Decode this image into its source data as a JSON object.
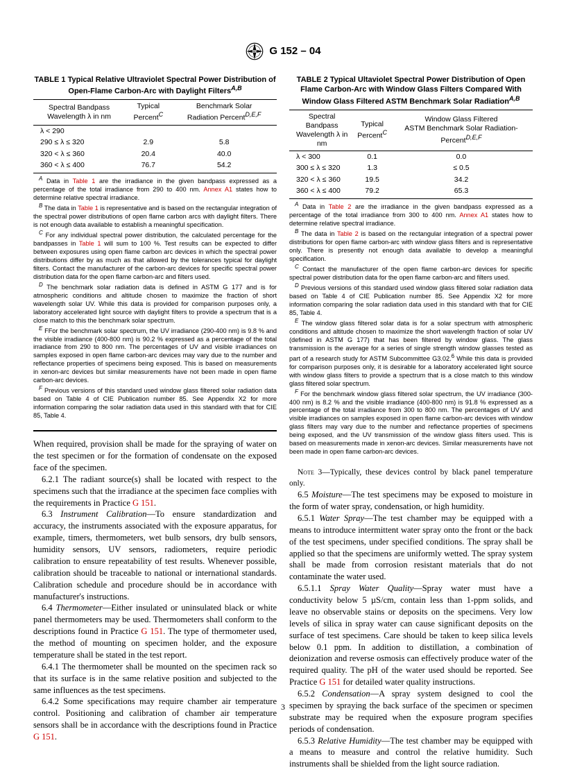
{
  "header": {
    "designation": "G 152 – 04"
  },
  "table1": {
    "title": "TABLE 1  Typical Relative Ultraviolet Spectral Power Distribution of Open-Flame Carbon-Arc with Daylight Filters",
    "title_super": "A,B",
    "headers": [
      "Spectral Bandpass\nWavelength λ in nm",
      "Typical\nPercent",
      "Benchmark Solar\nRadiation Percent"
    ],
    "header_supers": [
      "",
      "C",
      "D,E,F"
    ],
    "rows": [
      [
        "λ < 290",
        "",
        ""
      ],
      [
        "290 ≤ λ ≤ 320",
        "2.9",
        "5.8"
      ],
      [
        "320 < λ ≤ 360",
        "20.4",
        "40.0"
      ],
      [
        "360 < λ ≤ 400",
        "76.7",
        "54.2"
      ]
    ],
    "footnotes": [
      {
        "sup": "A",
        "text": "Data in <span class=\"red\">Table 1</span> are the irradiance in the given bandpass expressed as a percentage of the total irradiance from 290 to 400 nm. <span class=\"red\">Annex A1</span> states how to determine relative spectral irradiance."
      },
      {
        "sup": "B",
        "text": "The data in <span class=\"red\">Table 1</span> is representative and is based on the rectangular integration of the spectral power distributions of open flame carbon arcs with daylight filters. There is not enough data available to establish a meaningful specification."
      },
      {
        "sup": "C",
        "text": "For any individual spectral power distribution, the calculated percentage for the bandpasses in <span class=\"red\">Table 1</span> will sum to 100 %. Test results can be expected to differ between exposures using open flame carbon arc devices in which the spectral power distributions differ by as much as that allowed by the tolerances typical for daylight filters. Contact the manufacturer of the carbon-arc devices for specific spectral power distribution data for the open flame carbon-arc and filters used."
      },
      {
        "sup": "D",
        "text": "The benchmark solar radiation data is defined in ASTM G 177 and is for atmospheric conditions and altitude chosen to maximize the fraction of short wavelength solar UV. While this data is provided for comparison purposes only, a laboratory accelerated light source with daylight filters to provide a spectrum that is a close match to this the benchmark solar spectrum."
      },
      {
        "sup": "E",
        "text": "FFor the benchmark solar spectrum, the UV irradiance (290-400 nm) is 9.8 % and the visible irradiance (400-800 nm) is 90.2 % expressed as a percentage of the total irradiance from 290 to 800 nm. The percentages of UV and visible irradiances on samples exposed in open flame carbon-arc devices may vary due to the number and reflectance properties of specimens being exposed. This is based on measurements in xenon-arc devices but similar measurements have not been made in open flame carbon-arc devices."
      },
      {
        "sup": "F",
        "text": "Previous versions of this standard used window glass filtered solar radiation data based on Table 4 of CIE Publication number 85. See Appendix X2 for more information comparing the solar radiation data used in this standard with that for CIE 85, Table 4."
      }
    ]
  },
  "table2": {
    "title": "TABLE 2  Typical Ultaviolet Spectral Power Distribution of Open Flame Carbon-Arc with Window Glass Filters Compared With Window Glass Filtered ASTM Benchmark Solar Radiation",
    "title_super": "A,B",
    "headers": [
      "Spectral Bandpass\nWavelength λ in nm",
      "Typical\nPercent",
      "Window Glass Filtered\nASTM Benchmark Solar Radiation-Percent"
    ],
    "header_supers": [
      "",
      "C",
      "D,E,F"
    ],
    "rows": [
      [
        "λ < 300",
        "0.1",
        "0.0"
      ],
      [
        "300 ≤ λ ≤ 320",
        "1.3",
        "≤ 0.5"
      ],
      [
        "320 < λ ≤ 360",
        "19.5",
        "34.2"
      ],
      [
        "360 < λ ≤ 400",
        "79.2",
        "65.3"
      ]
    ],
    "footnotes": [
      {
        "sup": "A",
        "text": "Data in <span class=\"red\">Table 2</span> are the irradiance in the given bandpass expressed as a percentage of the total irradiance from 300 to 400 nm. <span class=\"red\">Annex A1</span> states how to determine relative spectral irradiance."
      },
      {
        "sup": "B",
        "text": "The data in <span class=\"red\">Table 2</span> is based on the rectangular integration of a spectral power distributions for open flame carbon-arc with window glass filters and is representative only. There is presently not enough data available to develop a meaningful specification."
      },
      {
        "sup": "C",
        "text": "Contact the manufacturer of the open flame carbon-arc devices for specific spectral power distribution data for the open flame carbon-arc and filters used."
      },
      {
        "sup": "D",
        "text": "Previous versions of this standard used window glass filtered solar radiation data based on Table 4 of CIE Publication number 85. See Appendix X2 for more information comparing the solar radiation data used in this standard with that for CIE 85, Table 4."
      },
      {
        "sup": "E",
        "text": "The window glass filtered solar data is for a solar spectrum with atmospheric conditions and altitude chosen to maximize the short wavelength fraction of solar UV (defined in ASTM G 177) that has been filtered by window glass. The glass transmission is the average for a series of single strength window glasses tested as part of a research study for ASTM Subcommittee G3.02.<sup>6</sup> While this data is provided for comparison purposes only, it is desirable for a laboratory accelerated light source with window glass filters to provide a spectrum that is a close match to this window glass filtered solar spectrum."
      },
      {
        "sup": "F",
        "text": "For the benchmark window glass filtered solar spectrum, the UV irradiance (300-400 nm) is 8.2 % and the visible irradiance (400-800 nm) is 91.8 % expressed as a percentage of the total irradiance from 300 to 800 nm. The percentages of UV and visible irradiances on samples exposed in open flame carbon-arc devices with window glass filters may vary due to the number and reflectance properties of specimens being exposed, and the UV transmission of the window glass filters used. This is based on measurements made in xenon-arc devices. Similar measurements have not been made in open flame carbon-arc devices."
      }
    ]
  },
  "left_body": [
    {
      "indent": false,
      "text": "When required, provision shall be made for the spraying of water on the test specimen or for the formation of condensate on the exposed face of the specimen."
    },
    {
      "indent": true,
      "text": "6.2.1 The radiant source(s) shall be located with respect to the specimens such that the irradiance at the specimen face complies with the requirements in Practice <span class=\"red\">G 151</span>."
    },
    {
      "indent": true,
      "text": "6.3 <span class=\"ital\">Instrument Calibration</span>—To ensure standardization and accuracy, the instruments associated with the exposure apparatus, for example, timers, thermometers, wet bulb sensors, dry bulb sensors, humidity sensors, UV sensors, radiometers, require periodic calibration to ensure repeatability of test results. Whenever possible, calibration should be traceable to national or international standards. Calibration schedule and procedure should be in accordance with manufacturer's instructions."
    },
    {
      "indent": true,
      "text": "6.4 <span class=\"ital\">Thermometer</span>—Either insulated or uninsulated black or white panel thermometers may be used. Thermometers shall conform to the descriptions found in Practice <span class=\"red\">G 151</span>. The type of thermometer used, the method of mounting on specimen holder, and the exposure temperature shall be stated in the test report."
    },
    {
      "indent": true,
      "text": "6.4.1 The thermometer shall be mounted on the specimen rack so that its surface is in the same relative position and subjected to the same influences as the test specimens."
    },
    {
      "indent": true,
      "text": "6.4.2 Some specifications may require chamber air temperature control. Positioning and calibration of chamber air temperature sensors shall be in accordance with the descriptions found in Practice <span class=\"red\">G 151</span>."
    }
  ],
  "right_body": [
    {
      "indent": true,
      "small": true,
      "text": "<span class=\"smallcaps\">Note</span> 3—Typically, these devices control by black panel temperature only."
    },
    {
      "indent": true,
      "text": "6.5 <span class=\"ital\">Moisture</span>—The test specimens may be exposed to moisture in the form of water spray, condensation, or high humidity."
    },
    {
      "indent": true,
      "text": "6.5.1 <span class=\"ital\">Water Spray</span>—The test chamber may be equipped with a means to introduce intermittent water spray onto the front or the back of the test specimens, under specified conditions. The spray shall be applied so that the specimens are uniformly wetted. The spray system shall be made from corrosion resistant materials that do not contaminate the water used."
    },
    {
      "indent": true,
      "text": "6.5.1.1 <span class=\"ital\">Spray Water Quality</span>—Spray water must have a conductivity below 5 µS/cm, contain less than 1-ppm solids, and leave no observable stains or deposits on the specimens. Very low levels of silica in spray water can cause significant deposits on the surface of test specimens. Care should be taken to keep silica levels below 0.1 ppm. In addition to distillation, a combination of deionization and reverse osmosis can effectively produce water of the required quality. The pH of the water used should be reported. See Practice <span class=\"red\">G 151</span> for detailed water quality instructions."
    },
    {
      "indent": true,
      "text": "6.5.2 <span class=\"ital\">Condensation</span>—A spray system designed to cool the specimen by spraying the back surface of the specimen or specimen substrate may be required when the exposure program specifies periods of condensation."
    },
    {
      "indent": true,
      "text": "6.5.3 <span class=\"ital\">Relative Humidity</span>—The test chamber may be equipped with a means to measure and control the relative humidity. Such instruments shall be shielded from the light source radiation."
    }
  ],
  "page_number": "3"
}
